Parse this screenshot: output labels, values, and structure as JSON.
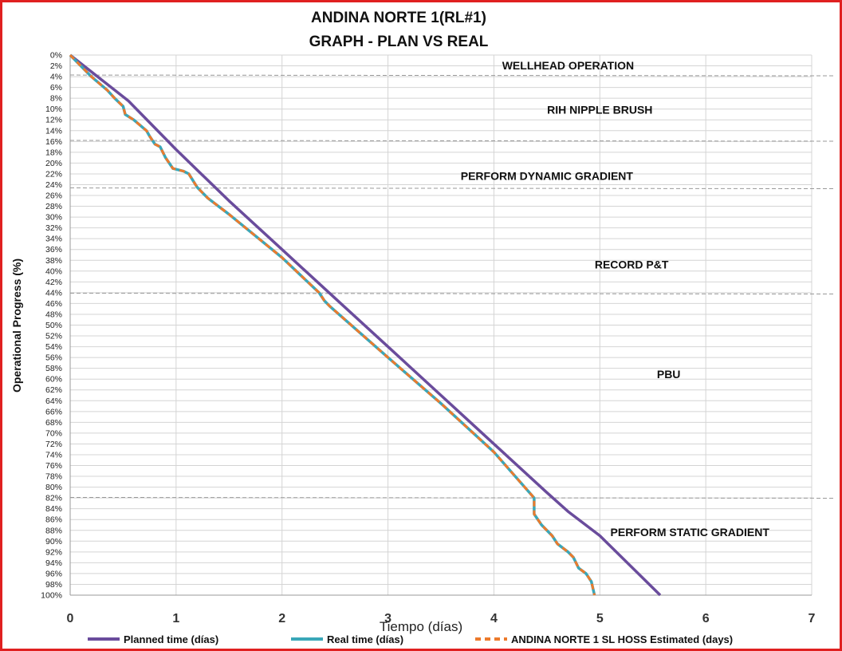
{
  "chart_data": {
    "type": "line",
    "title": "ANDINA NORTE 1(RL#1)",
    "subtitle": "GRAPH  - PLAN VS REAL",
    "xlabel": "Tiempo (días)",
    "ylabel": "Operational Progress (%)",
    "xlim": [
      0,
      7
    ],
    "ylim": [
      0,
      100
    ],
    "y_inverted": true,
    "x_ticks": [
      "0",
      "1",
      "2",
      "3",
      "4",
      "5",
      "6",
      "7"
    ],
    "y_ticks": [
      "0%",
      "2%",
      "4%",
      "6%",
      "8%",
      "10%",
      "12%",
      "14%",
      "16%",
      "18%",
      "20%",
      "22%",
      "24%",
      "26%",
      "28%",
      "30%",
      "32%",
      "34%",
      "36%",
      "38%",
      "40%",
      "42%",
      "44%",
      "46%",
      "48%",
      "50%",
      "52%",
      "54%",
      "56%",
      "58%",
      "60%",
      "62%",
      "64%",
      "66%",
      "68%",
      "70%",
      "72%",
      "74%",
      "76%",
      "78%",
      "80%",
      "82%",
      "84%",
      "86%",
      "88%",
      "90%",
      "92%",
      "94%",
      "96%",
      "98%",
      "100%"
    ],
    "grid": true,
    "legend_position": "bottom",
    "series": [
      {
        "name": "Planned time (días)",
        "color": "#6a4c9c",
        "style": "solid",
        "points": [
          [
            0,
            0
          ],
          [
            0.55,
            8.5
          ],
          [
            1.0,
            17.5
          ],
          [
            1.5,
            27
          ],
          [
            2.0,
            36
          ],
          [
            2.5,
            45
          ],
          [
            3.0,
            54
          ],
          [
            3.5,
            63
          ],
          [
            4.0,
            72
          ],
          [
            4.5,
            81
          ],
          [
            4.7,
            84.5
          ],
          [
            5.0,
            89
          ],
          [
            5.57,
            100
          ]
        ]
      },
      {
        "name": "Real time (días)",
        "color": "#3aa7b8",
        "style": "solid",
        "points": [
          [
            0,
            0
          ],
          [
            0.2,
            4
          ],
          [
            0.35,
            6.5
          ],
          [
            0.42,
            8
          ],
          [
            0.5,
            9.5
          ],
          [
            0.52,
            11
          ],
          [
            0.6,
            12
          ],
          [
            0.72,
            14
          ],
          [
            0.75,
            15
          ],
          [
            0.8,
            16.5
          ],
          [
            0.85,
            17
          ],
          [
            0.9,
            19
          ],
          [
            0.97,
            21
          ],
          [
            1.07,
            21.5
          ],
          [
            1.12,
            22
          ],
          [
            1.2,
            24.5
          ],
          [
            1.3,
            26.5
          ],
          [
            1.5,
            29.5
          ],
          [
            2.0,
            37.5
          ],
          [
            2.35,
            44
          ],
          [
            2.4,
            45.5
          ],
          [
            2.45,
            46.5
          ],
          [
            3.0,
            56
          ],
          [
            3.5,
            64.5
          ],
          [
            4.0,
            73.5
          ],
          [
            4.38,
            82
          ],
          [
            4.38,
            85
          ],
          [
            4.45,
            87
          ],
          [
            4.55,
            89
          ],
          [
            4.6,
            90.5
          ],
          [
            4.7,
            92
          ],
          [
            4.75,
            93
          ],
          [
            4.8,
            95
          ],
          [
            4.87,
            96
          ],
          [
            4.92,
            97.5
          ],
          [
            4.95,
            100
          ]
        ]
      },
      {
        "name": "ANDINA NORTE 1 SL HOSS Estimated (days)",
        "color": "#ec7a2c",
        "style": "dashed",
        "points": [
          [
            0,
            0
          ],
          [
            0.2,
            4
          ],
          [
            0.35,
            6.5
          ],
          [
            0.42,
            8
          ],
          [
            0.5,
            9.5
          ],
          [
            0.52,
            11
          ],
          [
            0.6,
            12
          ],
          [
            0.72,
            14
          ],
          [
            0.75,
            15
          ],
          [
            0.8,
            16.5
          ],
          [
            0.85,
            17
          ],
          [
            0.9,
            19
          ],
          [
            0.97,
            21
          ],
          [
            1.07,
            21.5
          ],
          [
            1.12,
            22
          ],
          [
            1.2,
            24.5
          ],
          [
            1.3,
            26.5
          ],
          [
            1.5,
            29.5
          ],
          [
            2.0,
            37.5
          ],
          [
            2.35,
            44
          ],
          [
            2.4,
            45.5
          ],
          [
            2.45,
            46.5
          ],
          [
            3.0,
            56
          ],
          [
            3.5,
            64.5
          ],
          [
            4.0,
            73.5
          ],
          [
            4.38,
            82
          ],
          [
            4.38,
            85
          ],
          [
            4.45,
            87
          ],
          [
            4.55,
            89
          ],
          [
            4.6,
            90.5
          ],
          [
            4.7,
            92
          ],
          [
            4.75,
            93
          ],
          [
            4.8,
            95
          ],
          [
            4.87,
            96
          ],
          [
            4.92,
            97.5
          ],
          [
            4.95,
            100
          ]
        ]
      }
    ],
    "phase_boundaries": [
      3.7,
      15.8,
      24.6,
      44.1,
      81.9
    ],
    "annotations": [
      {
        "text": "WELLHEAD  OPERATION",
        "x": 4.7,
        "y": 1.9
      },
      {
        "text": "RIH NIPPLE BRUSH",
        "x": 5.0,
        "y": 10.1
      },
      {
        "text": "PERFORM DYNAMIC GRADIENT",
        "x": 4.5,
        "y": 22.4
      },
      {
        "text": "RECORD P&T",
        "x": 5.3,
        "y": 38.8
      },
      {
        "text": "PBU",
        "x": 5.65,
        "y": 59.1
      },
      {
        "text": "PERFORM STATIC GRADIENT",
        "x": 5.85,
        "y": 88.3
      }
    ]
  }
}
